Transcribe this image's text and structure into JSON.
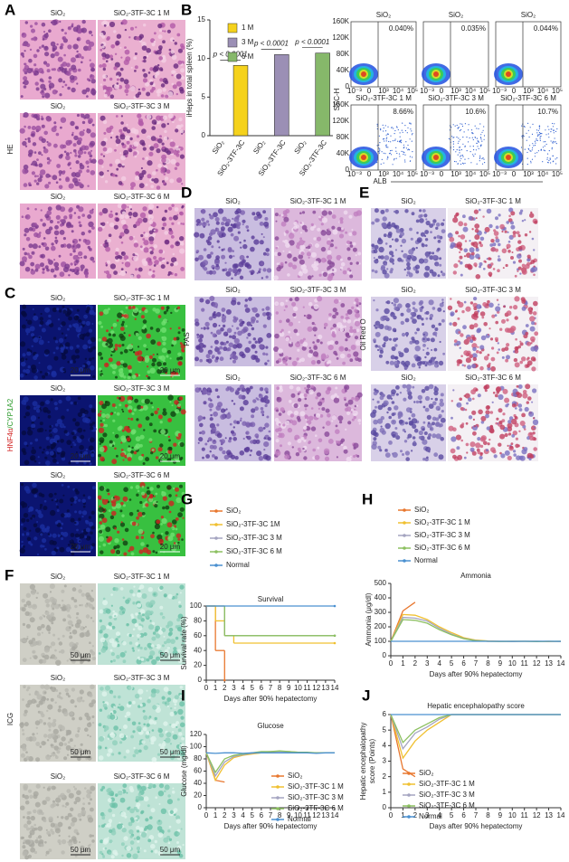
{
  "panels": {
    "A": {
      "label": "A",
      "side_label": "HE",
      "images": [
        {
          "left": "SiO₂",
          "right": "SiO₂-3TF-3C 1 M"
        },
        {
          "left": "SiO₂",
          "right": "SiO₂-3TF-3C 3 M"
        },
        {
          "left": "SiO₂",
          "right": "SiO₂-3TF-3C 6 M"
        }
      ]
    },
    "C": {
      "label": "C",
      "side_label": [
        "HNF4α",
        "/CYP1A2"
      ],
      "scale": "20 μm",
      "images": [
        {
          "left": "SiO₂",
          "right": "SiO₂-3TF-3C 1 M"
        },
        {
          "left": "SiO₂",
          "right": "SiO₂-3TF-3C 3 M"
        },
        {
          "left": "SiO₂",
          "right": "SiO₂-3TF-3C 6 M"
        }
      ]
    },
    "D": {
      "label": "D",
      "side_label": "PAS",
      "images": [
        {
          "left": "SiO₂",
          "right": "SiO₂-3TF-3C 1 M"
        },
        {
          "left": "SiO₂",
          "right": "SiO₂-3TF-3C 3 M"
        },
        {
          "left": "SiO₂",
          "right": "SiO₂-3TF-3C 6 M"
        }
      ]
    },
    "E": {
      "label": "E",
      "side_label": "Oil Red O",
      "images": [
        {
          "left": "SiO₂",
          "right": "SiO₂-3TF-3C 1 M"
        },
        {
          "left": "SiO₂",
          "right": "SiO₂-3TF-3C 3 M"
        },
        {
          "left": "SiO₂",
          "right": "SiO₂-3TF-3C 6 M"
        }
      ]
    },
    "F": {
      "label": "F",
      "side_label": "ICG",
      "scale": "50 μm",
      "images": [
        {
          "left": "SiO₂",
          "right": "SiO₂-3TF-3C 1 M"
        },
        {
          "left": "SiO₂",
          "right": "SiO₂-3TF-3C 3 M"
        },
        {
          "left": "SiO₂",
          "right": "SiO₂-3TF-3C 6 M"
        }
      ]
    },
    "flow": {
      "ylabel": "SSC-H",
      "xlabel": "ALB",
      "yticks": [
        "0",
        "40K",
        "80K",
        "120K",
        "160K"
      ],
      "xticks": [
        "10⁻³",
        "0",
        "10³",
        "10⁴",
        "10⁵"
      ],
      "plots": [
        {
          "title": "SiO₂",
          "percent": "0.040%"
        },
        {
          "title": "SiO₂",
          "percent": "0.035%"
        },
        {
          "title": "SiO₂",
          "percent": "0.044%"
        },
        {
          "title": "SiO₂-3TF-3C 1 M",
          "percent": "8.66%"
        },
        {
          "title": "SiO₂-3TF-3C 3 M",
          "percent": "10.6%"
        },
        {
          "title": "SiO₂-3TF-3C 6 M",
          "percent": "10.7%"
        }
      ]
    }
  },
  "chart_data": [
    {
      "type": "bar",
      "panel_label": "B",
      "ylabel": "iHeps in total spleen (%)",
      "categories": [
        "SiO₂",
        "SiO₂-3TF-3C",
        "SiO₂",
        "SiO₂-3TF-3C",
        "SiO₂",
        "SiO₂-3TF-3C"
      ],
      "series": [
        {
          "name": "1 M",
          "color": "#f5d21c",
          "values": [
            0,
            9.1,
            null,
            null,
            null,
            null
          ]
        },
        {
          "name": "3 M",
          "color": "#9b8fb5",
          "values": [
            null,
            null,
            0,
            10.5,
            null,
            null
          ]
        },
        {
          "name": "6 M",
          "color": "#86b86a",
          "values": [
            null,
            null,
            null,
            null,
            0,
            10.7
          ]
        }
      ],
      "annotations": [
        "p < 0.0001",
        "p < 0.0001",
        "p < 0.0001"
      ],
      "ylim": [
        0,
        15
      ],
      "yticks": [
        0,
        5,
        10,
        15
      ]
    },
    {
      "type": "line",
      "step": true,
      "panel_label": "G",
      "title": "Survival",
      "ylabel": "Survival rate (%)",
      "xlabel": "Days after 90% hepatectomy",
      "xlim": [
        0,
        14
      ],
      "xticks": [
        0,
        1,
        2,
        3,
        4,
        5,
        6,
        7,
        8,
        9,
        10,
        11,
        12,
        13,
        14
      ],
      "ylim": [
        0,
        100
      ],
      "yticks": [
        0,
        20,
        40,
        60,
        80,
        100
      ],
      "series": [
        {
          "name": "SiO₂",
          "color": "#e8772e",
          "x": [
            0,
            1,
            2
          ],
          "values": [
            100,
            40,
            0
          ]
        },
        {
          "name": "SiO₂-3TF-3C 1M",
          "color": "#f0c030",
          "x": [
            0,
            1,
            2,
            3,
            14
          ],
          "values": [
            100,
            80,
            60,
            50,
            50
          ]
        },
        {
          "name": "SiO₂-3TF-3C 3 M",
          "color": "#a4a4c0",
          "x": [
            0,
            2,
            14
          ],
          "values": [
            100,
            60,
            60
          ]
        },
        {
          "name": "SiO₂-3TF-3C 6 M",
          "color": "#8cc060",
          "x": [
            0,
            2,
            14
          ],
          "values": [
            100,
            60,
            60
          ]
        },
        {
          "name": "Normal",
          "color": "#4a90d0",
          "x": [
            0,
            14
          ],
          "values": [
            100,
            100
          ]
        }
      ]
    },
    {
      "type": "line",
      "panel_label": "H",
      "title": "Ammonia",
      "ylabel": "Ammonia (μg/dl)",
      "xlabel": "Days after 90% hepatectomy",
      "xlim": [
        0,
        14
      ],
      "xticks": [
        0,
        1,
        2,
        3,
        4,
        5,
        6,
        7,
        8,
        9,
        10,
        11,
        12,
        13,
        14
      ],
      "ylim": [
        0,
        500
      ],
      "yticks": [
        0,
        100,
        200,
        300,
        400,
        500
      ],
      "series": [
        {
          "name": "SiO₂",
          "color": "#e8772e",
          "x": [
            0,
            1,
            2
          ],
          "values": [
            100,
            310,
            370
          ]
        },
        {
          "name": "SiO₂-3TF-3C 1 M",
          "color": "#f0c030",
          "x": [
            0,
            1,
            2,
            3,
            4,
            5,
            6,
            7,
            8,
            9,
            10,
            11,
            12,
            13,
            14
          ],
          "values": [
            100,
            285,
            280,
            250,
            200,
            160,
            125,
            108,
            102,
            100,
            100,
            100,
            100,
            98,
            100
          ]
        },
        {
          "name": "SiO₂-3TF-3C 3 M",
          "color": "#a4a4c0",
          "x": [
            0,
            1,
            2,
            3,
            4,
            5,
            6,
            7,
            8,
            9,
            10,
            11,
            12,
            13,
            14
          ],
          "values": [
            100,
            265,
            260,
            240,
            190,
            150,
            120,
            105,
            100,
            100,
            98,
            100,
            100,
            100,
            98
          ]
        },
        {
          "name": "SiO₂-3TF-3C 6 M",
          "color": "#8cc060",
          "x": [
            0,
            1,
            2,
            3,
            4,
            5,
            6,
            7,
            8,
            9,
            10,
            11,
            12,
            13,
            14
          ],
          "values": [
            100,
            250,
            245,
            225,
            180,
            145,
            118,
            104,
            100,
            99,
            100,
            100,
            98,
            100,
            100
          ]
        },
        {
          "name": "Normal",
          "color": "#4a90d0",
          "x": [
            0,
            1,
            2,
            3,
            4,
            5,
            6,
            7,
            8,
            9,
            10,
            11,
            12,
            13,
            14
          ],
          "values": [
            100,
            100,
            100,
            100,
            100,
            100,
            100,
            100,
            100,
            100,
            100,
            100,
            100,
            100,
            100
          ]
        }
      ]
    },
    {
      "type": "line",
      "panel_label": "I",
      "title": "Glucose",
      "ylabel": "Glucose (mg/dl)",
      "xlabel": "Days after 90% hepatectomy",
      "xlim": [
        0,
        14
      ],
      "xticks": [
        0,
        1,
        2,
        3,
        4,
        5,
        6,
        7,
        8,
        9,
        10,
        11,
        12,
        13,
        14
      ],
      "ylim": [
        0,
        120
      ],
      "yticks": [
        0,
        20,
        40,
        60,
        80,
        100,
        120
      ],
      "series": [
        {
          "name": "SiO₂",
          "color": "#e8772e",
          "x": [
            0,
            1,
            2
          ],
          "values": [
            90,
            45,
            42
          ]
        },
        {
          "name": "SiO₂-3TF-3C 1 M",
          "color": "#f0c030",
          "x": [
            0,
            1,
            2,
            3,
            4,
            5,
            6,
            7,
            8,
            9,
            10,
            11,
            12,
            13,
            14
          ],
          "values": [
            90,
            45,
            70,
            82,
            86,
            88,
            90,
            91,
            92,
            92,
            91,
            90,
            90,
            90,
            90
          ]
        },
        {
          "name": "SiO₂-3TF-3C 3 M",
          "color": "#a4a4c0",
          "x": [
            0,
            1,
            2,
            3,
            4,
            5,
            6,
            7,
            8,
            9,
            10,
            11,
            12,
            13,
            14
          ],
          "values": [
            90,
            52,
            75,
            84,
            87,
            89,
            91,
            92,
            92,
            91,
            91,
            90,
            90,
            90,
            90
          ]
        },
        {
          "name": "SiO₂-3TF-3C 6 M",
          "color": "#8cc060",
          "x": [
            0,
            1,
            2,
            3,
            4,
            5,
            6,
            7,
            8,
            9,
            10,
            11,
            12,
            13,
            14
          ],
          "values": [
            90,
            58,
            80,
            86,
            88,
            90,
            92,
            92,
            93,
            92,
            91,
            91,
            90,
            90,
            90
          ]
        },
        {
          "name": "Normal",
          "color": "#4a90d0",
          "x": [
            0,
            1,
            2,
            3,
            4,
            5,
            6,
            7,
            8,
            9,
            10,
            11,
            12,
            13,
            14
          ],
          "values": [
            90,
            89,
            90,
            90,
            89,
            90,
            90,
            90,
            90,
            90,
            90,
            90,
            89,
            90,
            90
          ]
        }
      ]
    },
    {
      "type": "line",
      "panel_label": "J",
      "title": "Hepatic encephalopathy score",
      "ylabel": [
        "Hepatic encephalopathy",
        "score (Points)"
      ],
      "xlabel": "Days after 90% hepatectomy",
      "xlim": [
        0,
        14
      ],
      "xticks": [
        0,
        1,
        2,
        3,
        4,
        5,
        6,
        7,
        8,
        9,
        10,
        11,
        12,
        13,
        14
      ],
      "ylim": [
        0,
        6
      ],
      "yticks": [
        0,
        1,
        2,
        3,
        4,
        5,
        6
      ],
      "series": [
        {
          "name": "SiO₂",
          "color": "#e8772e",
          "x": [
            0,
            1,
            2
          ],
          "values": [
            6,
            2.5,
            2
          ]
        },
        {
          "name": "SiO₂-3TF-3C 1 M",
          "color": "#f0c030",
          "x": [
            0,
            1,
            2,
            3,
            4,
            5,
            6,
            7,
            8,
            9,
            10,
            11,
            12,
            13,
            14
          ],
          "values": [
            6,
            3.2,
            4.3,
            5,
            5.5,
            6,
            6,
            6,
            6,
            6,
            6,
            6,
            6,
            6,
            6
          ]
        },
        {
          "name": "SiO₂-3TF-3C 3 M",
          "color": "#a4a4c0",
          "x": [
            0,
            1,
            2,
            3,
            4,
            5,
            6,
            7,
            8,
            9,
            10,
            11,
            12,
            13,
            14
          ],
          "values": [
            6,
            3.8,
            4.8,
            5.2,
            5.7,
            6,
            6,
            6,
            6,
            6,
            6,
            6,
            6,
            6,
            6
          ]
        },
        {
          "name": "SiO₂-3TF-3C 6 M",
          "color": "#8cc060",
          "x": [
            0,
            1,
            2,
            3,
            4,
            5,
            6,
            7,
            8,
            9,
            10,
            11,
            12,
            13,
            14
          ],
          "values": [
            6,
            4.2,
            5,
            5.4,
            5.8,
            6,
            6,
            6,
            6,
            6,
            6,
            6,
            6,
            6,
            6
          ]
        },
        {
          "name": "Normal",
          "color": "#4a90d0",
          "x": [
            0,
            1,
            2,
            3,
            4,
            5,
            6,
            7,
            8,
            9,
            10,
            11,
            12,
            13,
            14
          ],
          "values": [
            6,
            6,
            6,
            6,
            6,
            6,
            6,
            6,
            6,
            6,
            6,
            6,
            6,
            6,
            6
          ]
        }
      ]
    }
  ]
}
